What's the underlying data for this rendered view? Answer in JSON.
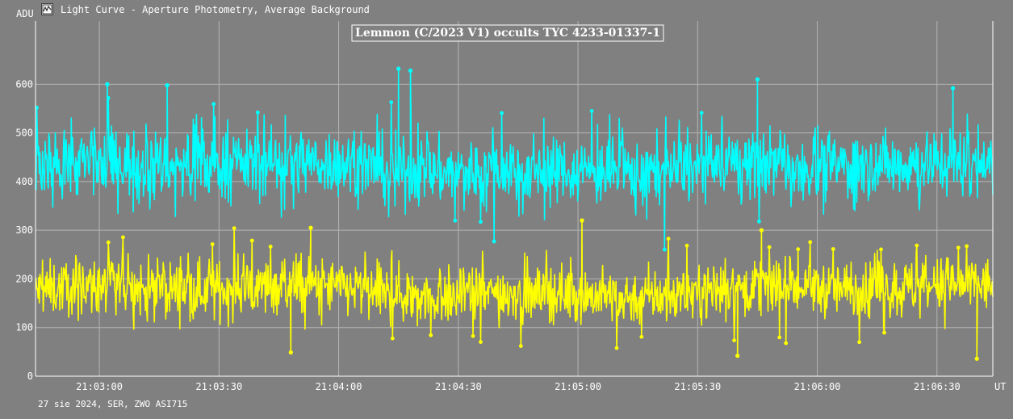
{
  "window": {
    "title": "Light Curve - Aperture Photometry, Average Background",
    "icon": "chart-window-icon"
  },
  "footer": {
    "text": "27 sie 2024, SER, ZWO ASI715"
  },
  "colors": {
    "background": "#808080",
    "grid": "#b4b4b4",
    "star": "#00ffff",
    "background_series": "#ffff00",
    "text": "#ffffff"
  },
  "chart_data": {
    "type": "line",
    "title": "Lemmon (C/2023 V1) occults TYC 4233-01337-1",
    "ylabel": "ADU",
    "xlabel": "UT",
    "x_type": "time",
    "x_range": [
      "21:02:44",
      "21:06:44"
    ],
    "ylim": [
      0,
      730
    ],
    "y_ticks": [
      0,
      100,
      200,
      300,
      400,
      500,
      600
    ],
    "x_ticks": [
      "21:03:00",
      "21:03:30",
      "21:04:00",
      "21:04:30",
      "21:05:00",
      "21:05:30",
      "21:06:00",
      "21:06:30"
    ],
    "grid": true,
    "legend": "none",
    "series": [
      {
        "color": "#00ffff",
        "typical_range": [
          300,
          560
        ],
        "mean": 430,
        "peaks": [
          {
            "time": "21:03:02",
            "value": 600
          },
          {
            "time": "21:03:17",
            "value": 598
          },
          {
            "time": "21:04:15",
            "value": 632
          },
          {
            "time": "21:04:18",
            "value": 628
          },
          {
            "time": "21:05:45",
            "value": 610
          },
          {
            "time": "21:06:34",
            "value": 592
          }
        ]
      },
      {
        "color": "#ffff00",
        "typical_range": [
          80,
          280
        ],
        "mean": 175,
        "peaks": [
          {
            "time": "21:05:01",
            "value": 320
          },
          {
            "time": "21:03:53",
            "value": 305
          },
          {
            "time": "21:05:46",
            "value": 300
          }
        ],
        "lows": [
          {
            "time": "21:05:40",
            "value": 42
          },
          {
            "time": "21:06:40",
            "value": 36
          },
          {
            "time": "21:03:48",
            "value": 49
          }
        ]
      }
    ]
  }
}
